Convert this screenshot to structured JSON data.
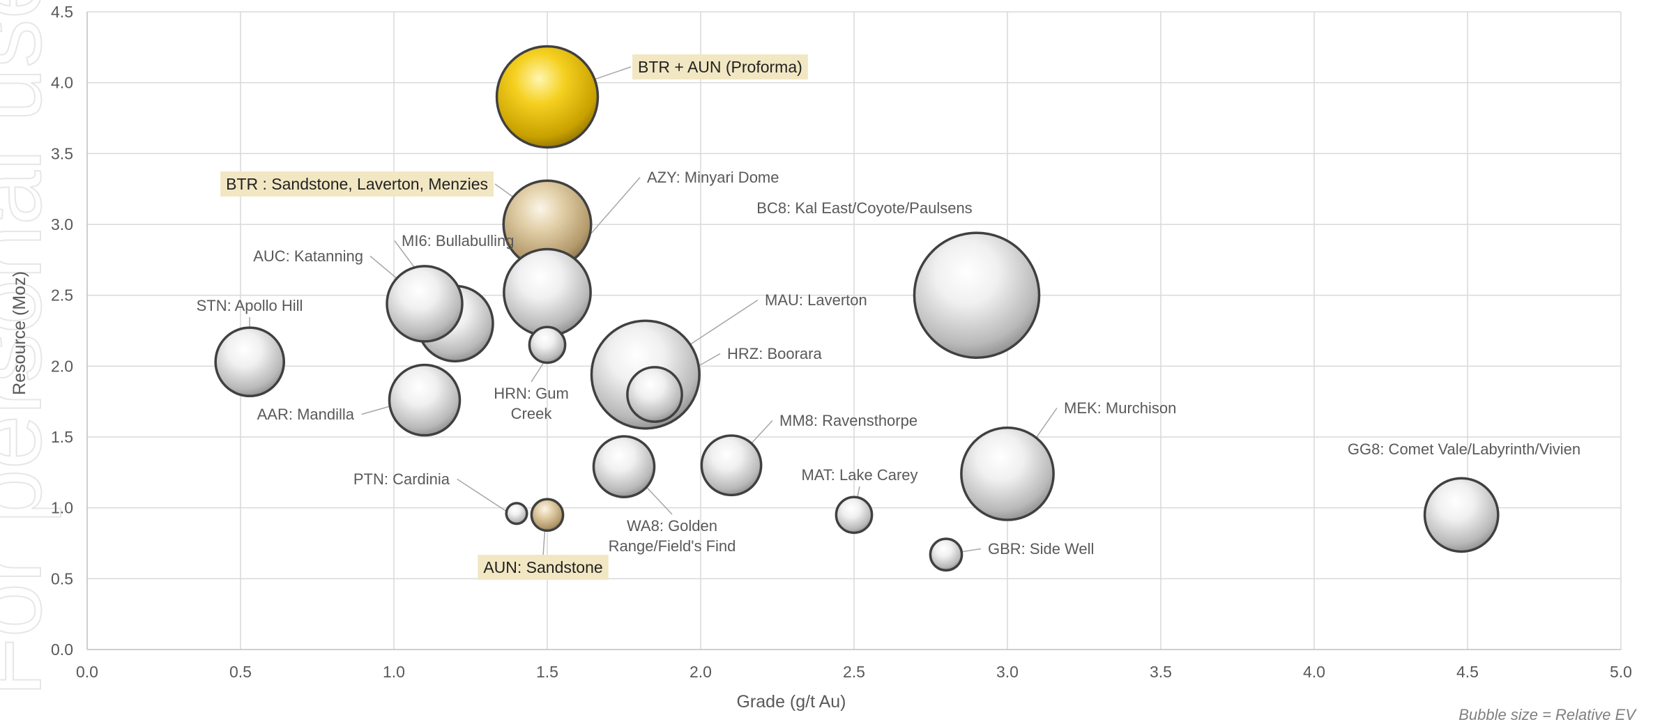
{
  "watermark": "For personal use only",
  "footnote": "Bubble size = Relative EV",
  "chart_data": {
    "type": "bubble",
    "xlabel": "Grade (g/t Au)",
    "ylabel": "Resource (Moz)",
    "xlim": [
      0,
      5
    ],
    "ylim": [
      0,
      4.5
    ],
    "x_ticks": [
      "0.0",
      "0.5",
      "1.0",
      "1.5",
      "2.0",
      "2.5",
      "3.0",
      "3.5",
      "4.0",
      "4.5",
      "5.0"
    ],
    "y_ticks": [
      "0.0",
      "0.5",
      "1.0",
      "1.5",
      "2.0",
      "2.5",
      "3.0",
      "3.5",
      "4.0",
      "4.5"
    ],
    "grid": true,
    "colors": {
      "gold": "#f0c419",
      "sand": "#d7c19a",
      "silver": "#e2e2e2",
      "label_highlight": "#f2e7c3"
    },
    "bubbles": [
      {
        "label": "BTR + AUN (Proforma)",
        "x": 1.5,
        "y": 3.9,
        "size": 7.2,
        "color": "gold",
        "highlight": true
      },
      {
        "label": "BTR : Sandstone, Laverton, Menzies",
        "x": 1.5,
        "y": 3.0,
        "size": 5.4,
        "color": "sand",
        "highlight": true
      },
      {
        "label": "AZY: Minyari Dome",
        "x": 1.5,
        "y": 2.52,
        "size": 5.3,
        "color": "silver",
        "highlight": false
      },
      {
        "label": "BC8: Kal East/Coyote/Paulsens",
        "x": 2.9,
        "y": 2.5,
        "size": 11.0,
        "color": "silver",
        "highlight": false
      },
      {
        "label": "MI6: Bullabulling",
        "x": 1.2,
        "y": 2.3,
        "size": 4.0,
        "color": "silver",
        "highlight": false
      },
      {
        "label": "AUC: Katanning",
        "x": 1.1,
        "y": 2.44,
        "size": 4.0,
        "color": "silver",
        "highlight": false
      },
      {
        "label": "STN: Apollo Hill",
        "x": 0.53,
        "y": 2.03,
        "size": 3.3,
        "color": "silver",
        "highlight": false
      },
      {
        "label": "HRN: Gum Creek",
        "x": 1.5,
        "y": 2.15,
        "size": 0.9,
        "color": "silver",
        "highlight": false
      },
      {
        "label": "MAU: Laverton",
        "x": 1.82,
        "y": 1.94,
        "size": 8.2,
        "color": "silver",
        "highlight": false
      },
      {
        "label": "HRZ: Boorara",
        "x": 1.85,
        "y": 1.8,
        "size": 2.1,
        "color": "silver",
        "highlight": false
      },
      {
        "label": "AAR: Mandilla",
        "x": 1.1,
        "y": 1.76,
        "size": 3.5,
        "color": "silver",
        "highlight": false
      },
      {
        "label": "MM8: Ravensthorpe",
        "x": 2.1,
        "y": 1.3,
        "size": 2.5,
        "color": "silver",
        "highlight": false
      },
      {
        "label": "WA8: Golden Range/Field's Find",
        "x": 1.75,
        "y": 1.29,
        "size": 2.6,
        "color": "silver",
        "highlight": false
      },
      {
        "label": "MEK: Murchison",
        "x": 3.0,
        "y": 1.24,
        "size": 6.0,
        "color": "silver",
        "highlight": false
      },
      {
        "label": "GG8: Comet Vale/Labyrinth/Vivien",
        "x": 4.48,
        "y": 0.95,
        "size": 3.8,
        "color": "silver",
        "highlight": false
      },
      {
        "label": "MAT: Lake Carey",
        "x": 2.5,
        "y": 0.95,
        "size": 0.9,
        "color": "silver",
        "highlight": false
      },
      {
        "label": "PTN: Cardinia",
        "x": 1.4,
        "y": 0.96,
        "size": 0.3,
        "color": "silver",
        "highlight": false
      },
      {
        "label": "AUN: Sandstone",
        "x": 1.5,
        "y": 0.95,
        "size": 0.7,
        "color": "sand",
        "highlight": true
      },
      {
        "label": "GBR: Side Well",
        "x": 2.8,
        "y": 0.67,
        "size": 0.7,
        "color": "silver",
        "highlight": false
      }
    ]
  }
}
